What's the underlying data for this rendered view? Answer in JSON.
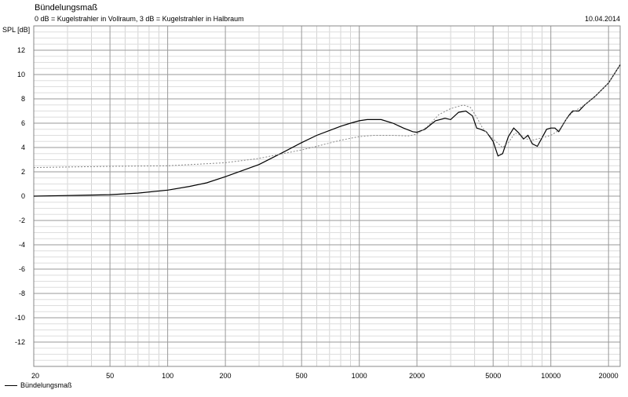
{
  "header": {
    "title": "Bündelungsmaß",
    "subtitle": "0 dB = Kugelstrahler in Vollraum, 3 dB = Kugelstrahler in Halbraum",
    "date": "10.04.2014"
  },
  "chart_data": {
    "type": "line",
    "xscale": "log",
    "xlim": [
      20,
      23000
    ],
    "ylim": [
      -14,
      14
    ],
    "ylabel": "SPL [dB]",
    "xlabel": "",
    "grid": true,
    "legend_position": "bottom-left",
    "x_ticks": [
      20,
      50,
      100,
      200,
      500,
      1000,
      2000,
      5000,
      10000,
      20000
    ],
    "x_tick_labels": [
      "20",
      "50",
      "100",
      "200",
      "500",
      "1000",
      "2000",
      "5000",
      "10000",
      "20000"
    ],
    "y_ticks": [
      12,
      10,
      8,
      6,
      4,
      2,
      0,
      -2,
      -4,
      -6,
      -8,
      -10,
      -12
    ],
    "y_tick_labels": [
      "12",
      "10",
      "8",
      "6",
      "4",
      "2",
      "0",
      "-2",
      "-4",
      "-6",
      "-8",
      "-10",
      "-12"
    ],
    "series": [
      {
        "name": "Bündelungsmaß",
        "color": "#000000",
        "dashed": false,
        "points": [
          [
            20,
            0
          ],
          [
            30,
            0.05
          ],
          [
            50,
            0.12
          ],
          [
            70,
            0.25
          ],
          [
            100,
            0.5
          ],
          [
            130,
            0.8
          ],
          [
            160,
            1.1
          ],
          [
            200,
            1.6
          ],
          [
            300,
            2.6
          ],
          [
            400,
            3.6
          ],
          [
            500,
            4.4
          ],
          [
            600,
            5.0
          ],
          [
            700,
            5.4
          ],
          [
            800,
            5.75
          ],
          [
            900,
            6.0
          ],
          [
            1000,
            6.2
          ],
          [
            1100,
            6.3
          ],
          [
            1300,
            6.3
          ],
          [
            1500,
            6.0
          ],
          [
            1700,
            5.6
          ],
          [
            1900,
            5.3
          ],
          [
            2000,
            5.25
          ],
          [
            2200,
            5.5
          ],
          [
            2500,
            6.2
          ],
          [
            2800,
            6.4
          ],
          [
            3000,
            6.3
          ],
          [
            3300,
            6.9
          ],
          [
            3600,
            7.0
          ],
          [
            3900,
            6.6
          ],
          [
            4100,
            5.6
          ],
          [
            4300,
            5.5
          ],
          [
            4600,
            5.3
          ],
          [
            5000,
            4.5
          ],
          [
            5300,
            3.3
          ],
          [
            5600,
            3.5
          ],
          [
            6000,
            4.9
          ],
          [
            6400,
            5.6
          ],
          [
            6800,
            5.2
          ],
          [
            7200,
            4.7
          ],
          [
            7600,
            5.0
          ],
          [
            8000,
            4.3
          ],
          [
            8500,
            4.1
          ],
          [
            9000,
            4.8
          ],
          [
            9500,
            5.5
          ],
          [
            10000,
            5.6
          ],
          [
            10500,
            5.6
          ],
          [
            11000,
            5.3
          ],
          [
            12000,
            6.3
          ],
          [
            12500,
            6.7
          ],
          [
            13000,
            7.0
          ],
          [
            14000,
            7.0
          ],
          [
            15000,
            7.5
          ],
          [
            17000,
            8.2
          ],
          [
            20000,
            9.3
          ],
          [
            23000,
            10.8
          ]
        ]
      },
      {
        "name": "",
        "color": "#888888",
        "dashed": true,
        "points": [
          [
            20,
            2.35
          ],
          [
            50,
            2.45
          ],
          [
            100,
            2.5
          ],
          [
            200,
            2.75
          ],
          [
            300,
            3.1
          ],
          [
            400,
            3.5
          ],
          [
            500,
            3.8
          ],
          [
            600,
            4.1
          ],
          [
            800,
            4.6
          ],
          [
            1000,
            4.9
          ],
          [
            1200,
            5.0
          ],
          [
            1500,
            5.0
          ],
          [
            1800,
            4.95
          ],
          [
            2000,
            5.1
          ],
          [
            2300,
            5.8
          ],
          [
            2600,
            6.7
          ],
          [
            3000,
            7.2
          ],
          [
            3500,
            7.5
          ],
          [
            3800,
            7.3
          ],
          [
            4100,
            6.5
          ],
          [
            4400,
            5.6
          ],
          [
            5000,
            4.7
          ],
          [
            5600,
            4.0
          ],
          [
            6000,
            4.4
          ],
          [
            6500,
            5.2
          ],
          [
            7000,
            5.0
          ],
          [
            7500,
            4.7
          ],
          [
            8000,
            4.6
          ],
          [
            9000,
            4.8
          ],
          [
            10000,
            5.0
          ],
          [
            11000,
            5.4
          ],
          [
            12000,
            6.3
          ],
          [
            13000,
            6.9
          ],
          [
            15000,
            7.5
          ],
          [
            17000,
            8.2
          ],
          [
            20000,
            9.3
          ],
          [
            23000,
            10.8
          ]
        ]
      }
    ]
  }
}
